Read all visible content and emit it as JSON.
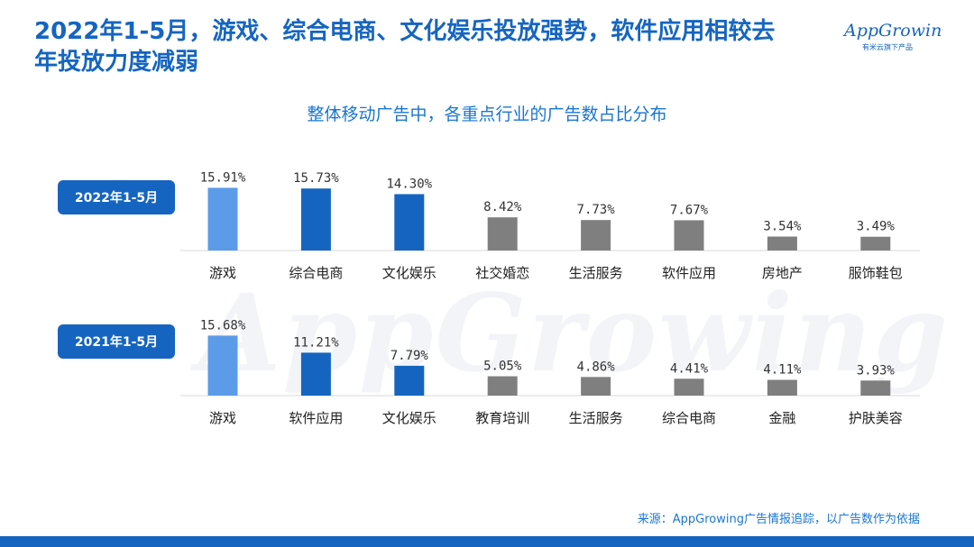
{
  "title": "2022年1-5月，游戏、综合电商、文化娱乐投放强势，软件应用相较去年投放力度减弱",
  "logo": {
    "name": "AppGrowing",
    "tagline": "有米云旗下产品"
  },
  "watermark": "AppGrowing",
  "source": "来源：AppGrowing广告情报追踪，以广告数作为依据",
  "colors": {
    "accent": "#1565c0",
    "highlight": "#5b9be8",
    "primary_bar": "#1565c0",
    "other_bar": "#7f7f7f",
    "axis": "#d9d9d9"
  },
  "chart_data": [
    {
      "type": "bar",
      "title": "整体移动广告中，各重点行业的广告数占比分布",
      "period": "2022年1-5月",
      "categories": [
        "游戏",
        "综合电商",
        "文化娱乐",
        "社交婚恋",
        "生活服务",
        "软件应用",
        "房地产",
        "服饰鞋包"
      ],
      "values": [
        15.91,
        15.73,
        14.3,
        8.42,
        7.73,
        7.67,
        3.54,
        3.49
      ],
      "labels": [
        "15.91%",
        "15.73%",
        "14.30%",
        "8.42%",
        "7.73%",
        "7.67%",
        "3.54%",
        "3.49%"
      ],
      "bar_colors": [
        "#5b9be8",
        "#1565c0",
        "#1565c0",
        "#7f7f7f",
        "#7f7f7f",
        "#7f7f7f",
        "#7f7f7f",
        "#7f7f7f"
      ],
      "ylim": [
        0,
        16
      ]
    },
    {
      "type": "bar",
      "period": "2021年1-5月",
      "categories": [
        "游戏",
        "软件应用",
        "文化娱乐",
        "教育培训",
        "生活服务",
        "综合电商",
        "金融",
        "护肤美容"
      ],
      "values": [
        15.68,
        11.21,
        7.79,
        5.05,
        4.86,
        4.41,
        4.11,
        3.93
      ],
      "labels": [
        "15.68%",
        "11.21%",
        "7.79%",
        "5.05%",
        "4.86%",
        "4.41%",
        "4.11%",
        "3.93%"
      ],
      "bar_colors": [
        "#5b9be8",
        "#1565c0",
        "#1565c0",
        "#7f7f7f",
        "#7f7f7f",
        "#7f7f7f",
        "#7f7f7f",
        "#7f7f7f"
      ],
      "ylim": [
        0,
        16
      ]
    }
  ]
}
